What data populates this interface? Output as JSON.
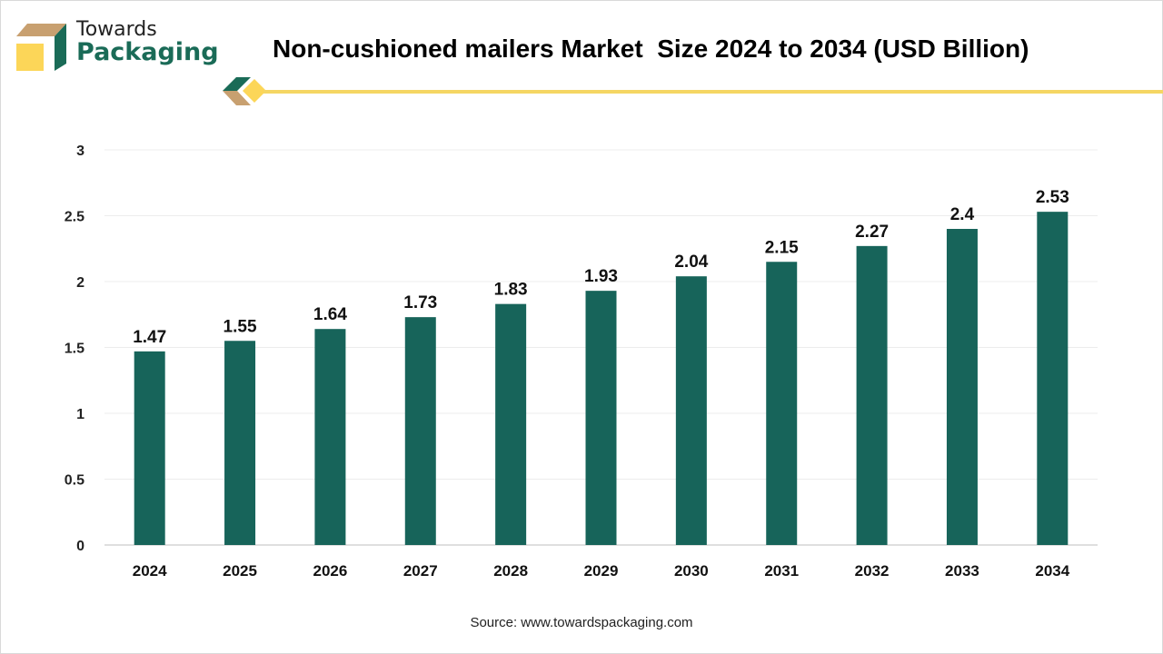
{
  "logo": {
    "line1": "Towards",
    "line2": "Packaging"
  },
  "colors": {
    "bar": "#17645a",
    "accent_line": "#f5d663",
    "logo_green": "#1a6b57",
    "logo_tan": "#c8a070",
    "logo_yellow": "#fcd658"
  },
  "source": "Source: www.towardspackaging.com",
  "chart_data": {
    "type": "bar",
    "title": "Non-cushioned mailers Market  Size 2024 to 2034 (USD Billion)",
    "categories": [
      "2024",
      "2025",
      "2026",
      "2027",
      "2028",
      "2029",
      "2030",
      "2031",
      "2032",
      "2033",
      "2034"
    ],
    "values": [
      1.47,
      1.55,
      1.64,
      1.73,
      1.83,
      1.93,
      2.04,
      2.15,
      2.27,
      2.4,
      2.53
    ],
    "xlabel": "",
    "ylabel": "",
    "ylim": [
      0,
      3
    ],
    "yticks": [
      "0",
      "0.5",
      "1",
      "1.5",
      "2",
      "2.5",
      "3"
    ],
    "grid": true,
    "legend": "none"
  }
}
